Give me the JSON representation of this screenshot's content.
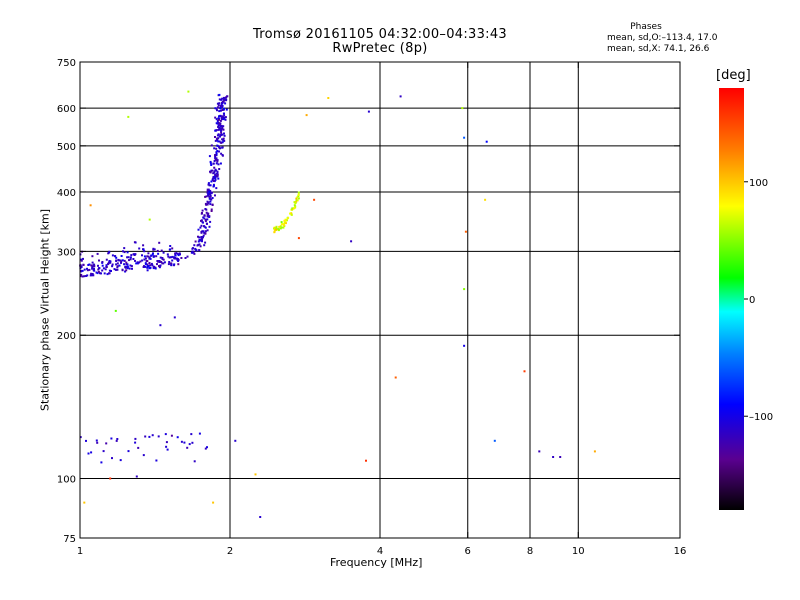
{
  "header": {
    "title_line1": "Tromsø 20161105 04:32:00–04:33:43",
    "title_line2": "RwPretec (8p)",
    "stats_title": "Phases",
    "stats_o": "mean, sd,O:–113.4, 17.0",
    "stats_x": "mean, sd,X:  74.1, 26.6"
  },
  "colorbar": {
    "title": "[deg]",
    "ticks": [
      {
        "value": 100,
        "label": "100"
      },
      {
        "value": 0,
        "label": "0"
      },
      {
        "value": -100,
        "label": "–100"
      }
    ],
    "range": [
      -180,
      180
    ]
  },
  "chart_data": {
    "type": "scatter",
    "xlabel": "Frequency [MHz]",
    "ylabel": "Stationary phase Virtual Height [km]",
    "xscale": "log",
    "yscale": "log",
    "xlim": [
      1,
      16
    ],
    "ylim": [
      75,
      750
    ],
    "x_ticks": [
      1,
      2,
      4,
      6,
      8,
      10,
      16
    ],
    "x_tick_labels": [
      "1",
      "2",
      "4",
      "6",
      "8",
      "10",
      "16"
    ],
    "y_ticks": [
      75,
      100,
      200,
      300,
      400,
      500,
      600,
      750
    ],
    "y_tick_labels": [
      "75",
      "100",
      "200",
      "300",
      "400",
      "500",
      "600",
      "750"
    ],
    "grid_x": [
      2,
      4,
      6,
      8,
      10
    ],
    "grid_y": [
      100,
      200,
      300,
      400,
      500,
      600
    ],
    "color_variable": "phase [deg]",
    "clusters": [
      {
        "name": "O-mode low F trace",
        "x_range": [
          1.0,
          1.6
        ],
        "y_range": [
          255,
          320
        ],
        "phase_mean": -113,
        "count": 260
      },
      {
        "name": "O-mode upturn",
        "x_range": [
          1.6,
          2.05
        ],
        "y_range": [
          290,
          640
        ],
        "phase_mean": -113,
        "count": 320
      },
      {
        "name": "X-mode trace",
        "x_range": [
          2.45,
          2.75
        ],
        "y_range": [
          330,
          400
        ],
        "phase_mean": 74,
        "count": 60
      },
      {
        "name": "E-region echoes",
        "x_range": [
          1.0,
          1.8
        ],
        "y_range": [
          108,
          125
        ],
        "phase_mean": -110,
        "count": 40
      }
    ],
    "scattered_points": [
      {
        "x": 1.25,
        "y": 575,
        "phase": 60
      },
      {
        "x": 1.65,
        "y": 650,
        "phase": 60
      },
      {
        "x": 2.85,
        "y": 580,
        "phase": 110
      },
      {
        "x": 3.15,
        "y": 630,
        "phase": 95
      },
      {
        "x": 3.8,
        "y": 590,
        "phase": -110
      },
      {
        "x": 4.4,
        "y": 635,
        "phase": -115
      },
      {
        "x": 5.85,
        "y": 600,
        "phase": 60
      },
      {
        "x": 5.9,
        "y": 520,
        "phase": -60
      },
      {
        "x": 6.55,
        "y": 510,
        "phase": -90
      },
      {
        "x": 6.5,
        "y": 385,
        "phase": 90
      },
      {
        "x": 5.95,
        "y": 330,
        "phase": 140
      },
      {
        "x": 5.9,
        "y": 250,
        "phase": 50
      },
      {
        "x": 5.9,
        "y": 190,
        "phase": -100
      },
      {
        "x": 4.3,
        "y": 163,
        "phase": 140
      },
      {
        "x": 7.8,
        "y": 168,
        "phase": 155
      },
      {
        "x": 6.8,
        "y": 120,
        "phase": -60
      },
      {
        "x": 8.35,
        "y": 114,
        "phase": -120
      },
      {
        "x": 8.9,
        "y": 111,
        "phase": -115
      },
      {
        "x": 9.2,
        "y": 111,
        "phase": -120
      },
      {
        "x": 10.8,
        "y": 114,
        "phase": 110
      },
      {
        "x": 3.75,
        "y": 109,
        "phase": 160
      },
      {
        "x": 2.25,
        "y": 102,
        "phase": 100
      },
      {
        "x": 2.3,
        "y": 83,
        "phase": -110
      },
      {
        "x": 1.85,
        "y": 89,
        "phase": 100
      },
      {
        "x": 1.02,
        "y": 89,
        "phase": 100
      },
      {
        "x": 1.15,
        "y": 100,
        "phase": 160
      },
      {
        "x": 1.3,
        "y": 101,
        "phase": -115
      },
      {
        "x": 1.18,
        "y": 225,
        "phase": 40
      },
      {
        "x": 1.45,
        "y": 210,
        "phase": -110
      },
      {
        "x": 1.55,
        "y": 218,
        "phase": -110
      },
      {
        "x": 2.05,
        "y": 120,
        "phase": -110
      },
      {
        "x": 3.5,
        "y": 315,
        "phase": -115
      },
      {
        "x": 2.75,
        "y": 320,
        "phase": 150
      },
      {
        "x": 2.95,
        "y": 385,
        "phase": 150
      },
      {
        "x": 1.05,
        "y": 375,
        "phase": 120
      },
      {
        "x": 1.38,
        "y": 350,
        "phase": 60
      }
    ]
  }
}
